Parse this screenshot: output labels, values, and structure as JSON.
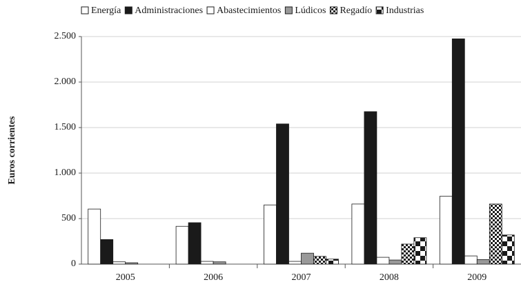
{
  "chart_data": {
    "type": "bar",
    "ylabel": "Euros corrientes",
    "categories": [
      "2005",
      "2006",
      "2007",
      "2008",
      "2009"
    ],
    "series": [
      {
        "name": "Energía",
        "color": "#ffffff",
        "values": [
          605,
          415,
          650,
          660,
          745
        ]
      },
      {
        "name": "Administraciones",
        "color": "#1a1a1a",
        "values": [
          270,
          455,
          1540,
          1675,
          2475
        ]
      },
      {
        "name": "Abastecimientos",
        "color": "#ffffff",
        "values": [
          25,
          30,
          30,
          75,
          90
        ]
      },
      {
        "name": "Lúdicos",
        "color": "#999999",
        "values": [
          15,
          25,
          120,
          45,
          50
        ]
      },
      {
        "name": "Regadío",
        "color": "#1a1a1a",
        "values": [
          0,
          0,
          85,
          220,
          660
        ]
      },
      {
        "name": "Industrias",
        "color": "#1a1a1a",
        "values": [
          0,
          0,
          55,
          290,
          320
        ]
      }
    ],
    "ylim": [
      0,
      2500
    ],
    "yticks": [
      0,
      500,
      {
        "value": 1000,
        "label": "1.000"
      },
      {
        "value": 1500,
        "label": "1.500"
      },
      {
        "value": 2000,
        "label": "2.000"
      },
      {
        "value": 2500,
        "label": "2.500"
      }
    ],
    "grid": true
  }
}
